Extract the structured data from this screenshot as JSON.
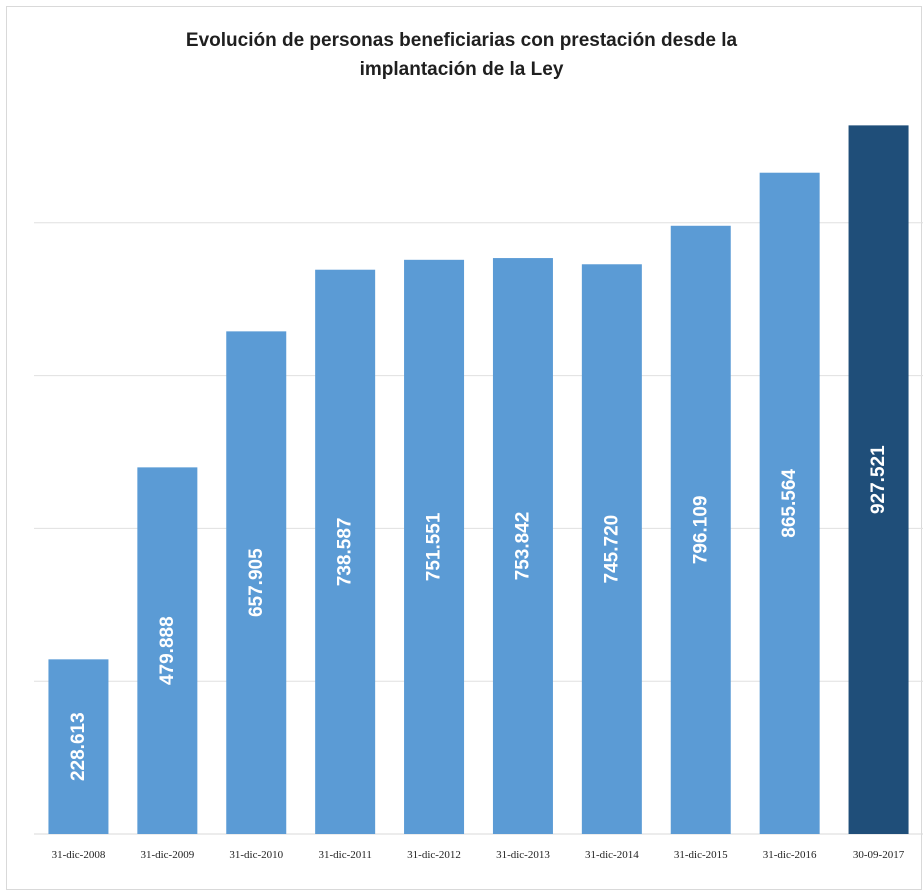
{
  "chart_data": {
    "type": "bar",
    "title_lines": [
      "Evolución de personas beneficiarias con prestación desde la",
      "implantación de la Ley"
    ],
    "categories": [
      "31-dic-2008",
      "31-dic-2009",
      "31-dic-2010",
      "31-dic-2011",
      "31-dic-2012",
      "31-dic-2013",
      "31-dic-2014",
      "31-dic-2015",
      "31-dic-2016",
      "30-09-2017"
    ],
    "values": [
      228613,
      479888,
      657905,
      738587,
      751551,
      753842,
      745720,
      796109,
      865564,
      927521
    ],
    "value_labels": [
      "228.613",
      "479.888",
      "657.905",
      "738.587",
      "751.551",
      "753.842",
      "745.720",
      "796.109",
      "865.564",
      "927.521"
    ],
    "ylim": [
      0,
      1000000
    ],
    "gridlines": [
      200000,
      400000,
      600000,
      800000
    ],
    "grid": true,
    "bar_colors": {
      "default": "#5b9bd5",
      "highlight": "#1f4e79"
    },
    "highlight_index": 9,
    "legend": "none"
  }
}
